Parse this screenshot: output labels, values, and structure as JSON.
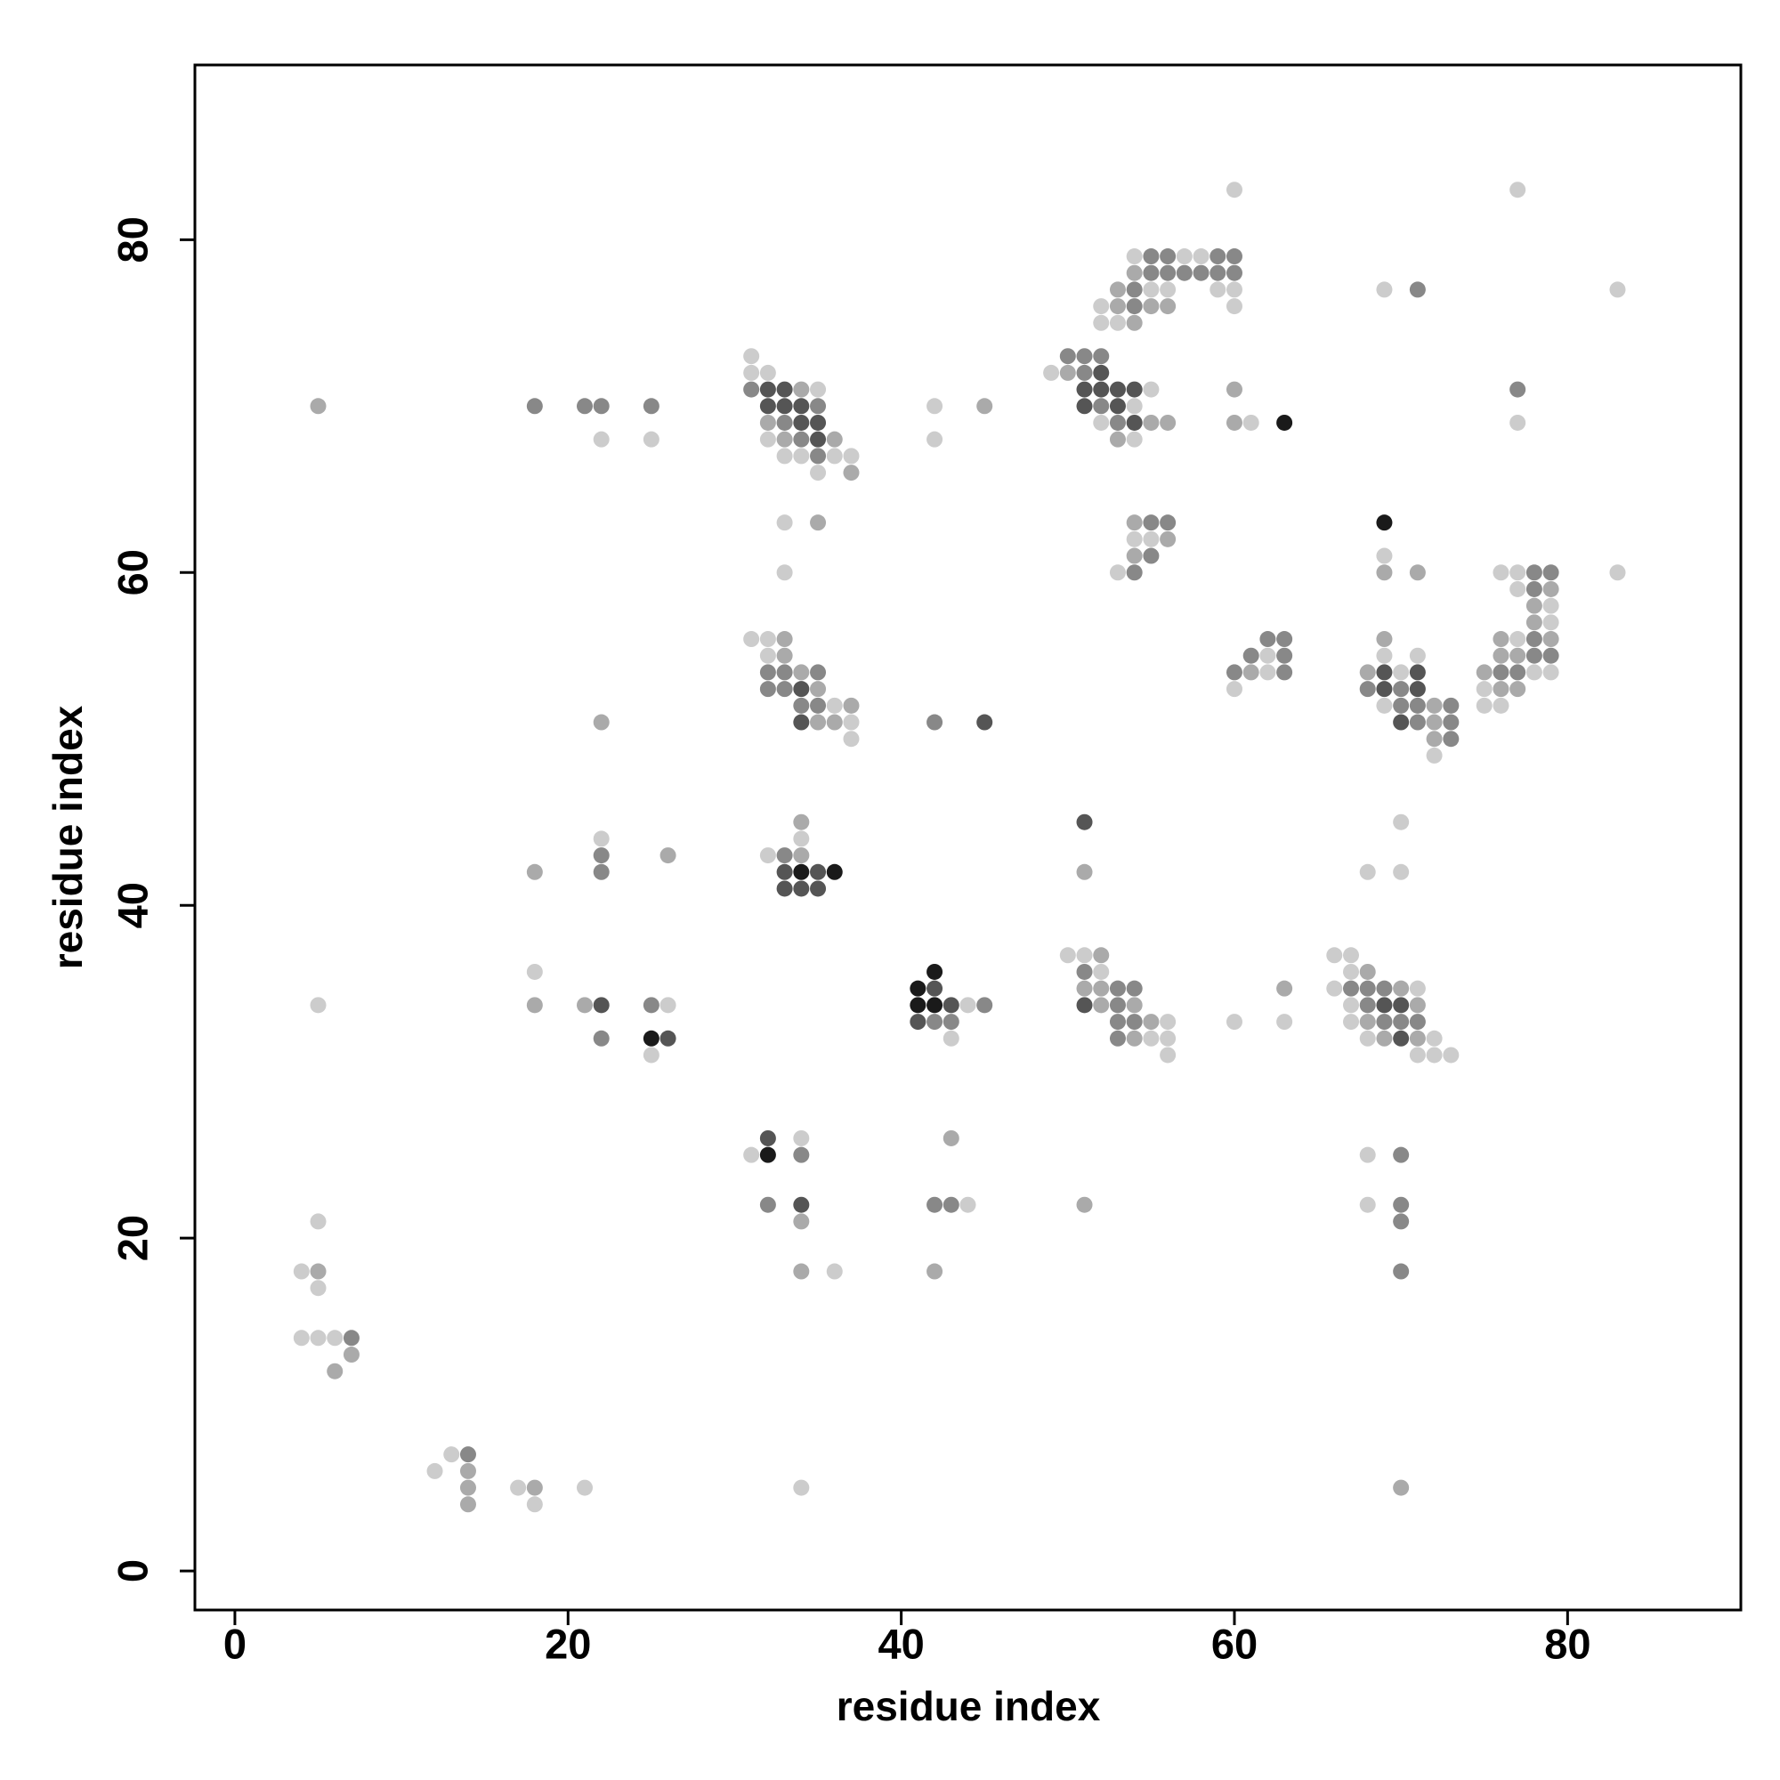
{
  "chart_data": {
    "type": "scatter",
    "xlabel": "residue index",
    "ylabel": "residue index",
    "xlim": [
      -2.4,
      90.4
    ],
    "ylim": [
      -2.35,
      90.5
    ],
    "xticks": [
      0,
      20,
      40,
      60,
      80
    ],
    "yticks": [
      0,
      20,
      40,
      60,
      80
    ],
    "series": [
      {
        "color": "#cccccc",
        "x": [
          5,
          5,
          4,
          5,
          4,
          5,
          6,
          12,
          13,
          17,
          18,
          21,
          34,
          18,
          22,
          25,
          22,
          26,
          25,
          31,
          31,
          32,
          35,
          32,
          33,
          34,
          36,
          37,
          35,
          33,
          33,
          31,
          32,
          32,
          36,
          37,
          37,
          42,
          42,
          34,
          32,
          44,
          43,
          31,
          34,
          36,
          44,
          49,
          55,
          54,
          52,
          54,
          61,
          54,
          57,
          58,
          55,
          56,
          59,
          60,
          52,
          60,
          52,
          53,
          60,
          54,
          55,
          53,
          60,
          62,
          62,
          50,
          51,
          52,
          56,
          55,
          56,
          56,
          60,
          63,
          66,
          67,
          66,
          67,
          71,
          67,
          67,
          68,
          72,
          71,
          72,
          73,
          68,
          70,
          70,
          68,
          68,
          69,
          71,
          70,
          69,
          72,
          69,
          69,
          77,
          77,
          83,
          83,
          76,
          77,
          77,
          79,
          79,
          77,
          78,
          79,
          75,
          75,
          76
        ],
        "y": [
          34,
          21,
          18,
          17,
          14,
          14,
          14,
          6,
          7,
          5,
          4,
          5,
          5,
          36,
          68,
          68,
          44,
          34,
          31,
          73,
          72,
          72,
          71,
          68,
          67,
          67,
          67,
          67,
          66,
          63,
          60,
          56,
          56,
          55,
          52,
          51,
          50,
          70,
          68,
          44,
          43,
          34,
          32,
          25,
          26,
          18,
          22,
          72,
          71,
          70,
          69,
          68,
          69,
          79,
          79,
          79,
          77,
          77,
          77,
          77,
          76,
          76,
          75,
          75,
          83,
          62,
          62,
          60,
          53,
          55,
          54,
          37,
          37,
          36,
          33,
          32,
          32,
          31,
          33,
          33,
          37,
          37,
          35,
          36,
          35,
          34,
          33,
          32,
          32,
          31,
          31,
          31,
          42,
          42,
          45,
          25,
          22,
          55,
          55,
          54,
          52,
          49,
          61,
          77,
          83,
          69,
          77,
          60,
          60,
          60,
          59,
          58,
          57,
          56,
          54,
          54,
          53,
          52,
          52
        ]
      },
      {
        "color": "#aaaaaa",
        "x": [
          5,
          5,
          6,
          7,
          14,
          14,
          14,
          18,
          70,
          18,
          18,
          22,
          26,
          21,
          34,
          32,
          33,
          36,
          37,
          35,
          33,
          33,
          34,
          35,
          37,
          35,
          36,
          45,
          34,
          34,
          43,
          34,
          34,
          42,
          51,
          50,
          55,
          56,
          53,
          60,
          60,
          54,
          53,
          53,
          55,
          56,
          54,
          54,
          56,
          54,
          61,
          51,
          52,
          51,
          52,
          52,
          54,
          55,
          54,
          63,
          68,
          70,
          71,
          68,
          69,
          71,
          69,
          68,
          72,
          72,
          72,
          69,
          71,
          79,
          78,
          78,
          76,
          79,
          76,
          77,
          75,
          76,
          77
        ],
        "y": [
          70,
          18,
          12,
          13,
          6,
          5,
          4,
          5,
          5,
          42,
          34,
          51,
          43,
          34,
          71,
          69,
          68,
          68,
          66,
          63,
          56,
          55,
          54,
          53,
          52,
          51,
          51,
          70,
          45,
          43,
          26,
          21,
          18,
          18,
          22,
          72,
          69,
          69,
          68,
          71,
          69,
          78,
          77,
          76,
          76,
          76,
          75,
          63,
          62,
          61,
          54,
          42,
          37,
          35,
          35,
          34,
          34,
          33,
          32,
          35,
          36,
          35,
          34,
          33,
          32,
          32,
          56,
          54,
          52,
          51,
          50,
          60,
          60,
          59,
          58,
          57,
          56,
          56,
          55,
          55,
          54,
          53,
          53
        ]
      },
      {
        "color": "#888888",
        "x": [
          7,
          14,
          18,
          21,
          22,
          25,
          22,
          22,
          22,
          25,
          31,
          35,
          33,
          34,
          35,
          32,
          33,
          35,
          32,
          33,
          34,
          35,
          42,
          33,
          45,
          42,
          43,
          34,
          32,
          42,
          43,
          50,
          51,
          52,
          51,
          52,
          53,
          55,
          56,
          59,
          60,
          55,
          56,
          57,
          58,
          59,
          60,
          54,
          54,
          55,
          56,
          55,
          54,
          60,
          61,
          62,
          63,
          63,
          63,
          51,
          53,
          54,
          53,
          53,
          54,
          53,
          67,
          68,
          69,
          68,
          69,
          70,
          71,
          70,
          70,
          70,
          70,
          68,
          70,
          70,
          71,
          73,
          71,
          73,
          73,
          71,
          77,
          78,
          79,
          78,
          78,
          78,
          79,
          76,
          77
        ],
        "y": [
          14,
          7,
          70,
          70,
          70,
          70,
          43,
          42,
          32,
          34,
          71,
          70,
          69,
          68,
          67,
          54,
          54,
          54,
          53,
          53,
          52,
          52,
          51,
          43,
          34,
          33,
          33,
          25,
          22,
          22,
          22,
          73,
          73,
          73,
          72,
          70,
          69,
          79,
          79,
          79,
          79,
          78,
          78,
          78,
          78,
          78,
          78,
          77,
          76,
          63,
          63,
          61,
          60,
          54,
          55,
          56,
          56,
          55,
          54,
          36,
          35,
          35,
          34,
          33,
          33,
          32,
          35,
          35,
          35,
          34,
          33,
          33,
          33,
          25,
          22,
          21,
          18,
          53,
          53,
          52,
          52,
          52,
          51,
          51,
          50,
          77,
          71,
          60,
          60,
          59,
          56,
          55,
          55,
          54,
          54
        ]
      },
      {
        "color": "#555555",
        "x": [
          22,
          26,
          32,
          33,
          32,
          33,
          34,
          34,
          35,
          35,
          34,
          34,
          45,
          33,
          35,
          33,
          34,
          35,
          42,
          43,
          41,
          32,
          34,
          52,
          51,
          52,
          53,
          54,
          51,
          53,
          54,
          51,
          51,
          69,
          70,
          70,
          69,
          71,
          69,
          71,
          70
        ],
        "y": [
          34,
          32,
          71,
          71,
          70,
          70,
          70,
          69,
          69,
          68,
          53,
          51,
          51,
          42,
          42,
          41,
          41,
          41,
          35,
          34,
          33,
          26,
          22,
          72,
          71,
          71,
          71,
          71,
          70,
          70,
          69,
          45,
          34,
          34,
          34,
          32,
          54,
          54,
          53,
          53,
          51
        ]
      },
      {
        "color": "#1a1a1a",
        "x": [
          25,
          34,
          36,
          42,
          41,
          41,
          42,
          32,
          63,
          69
        ],
        "y": [
          32,
          42,
          42,
          36,
          35,
          34,
          34,
          25,
          69,
          63
        ]
      }
    ]
  }
}
